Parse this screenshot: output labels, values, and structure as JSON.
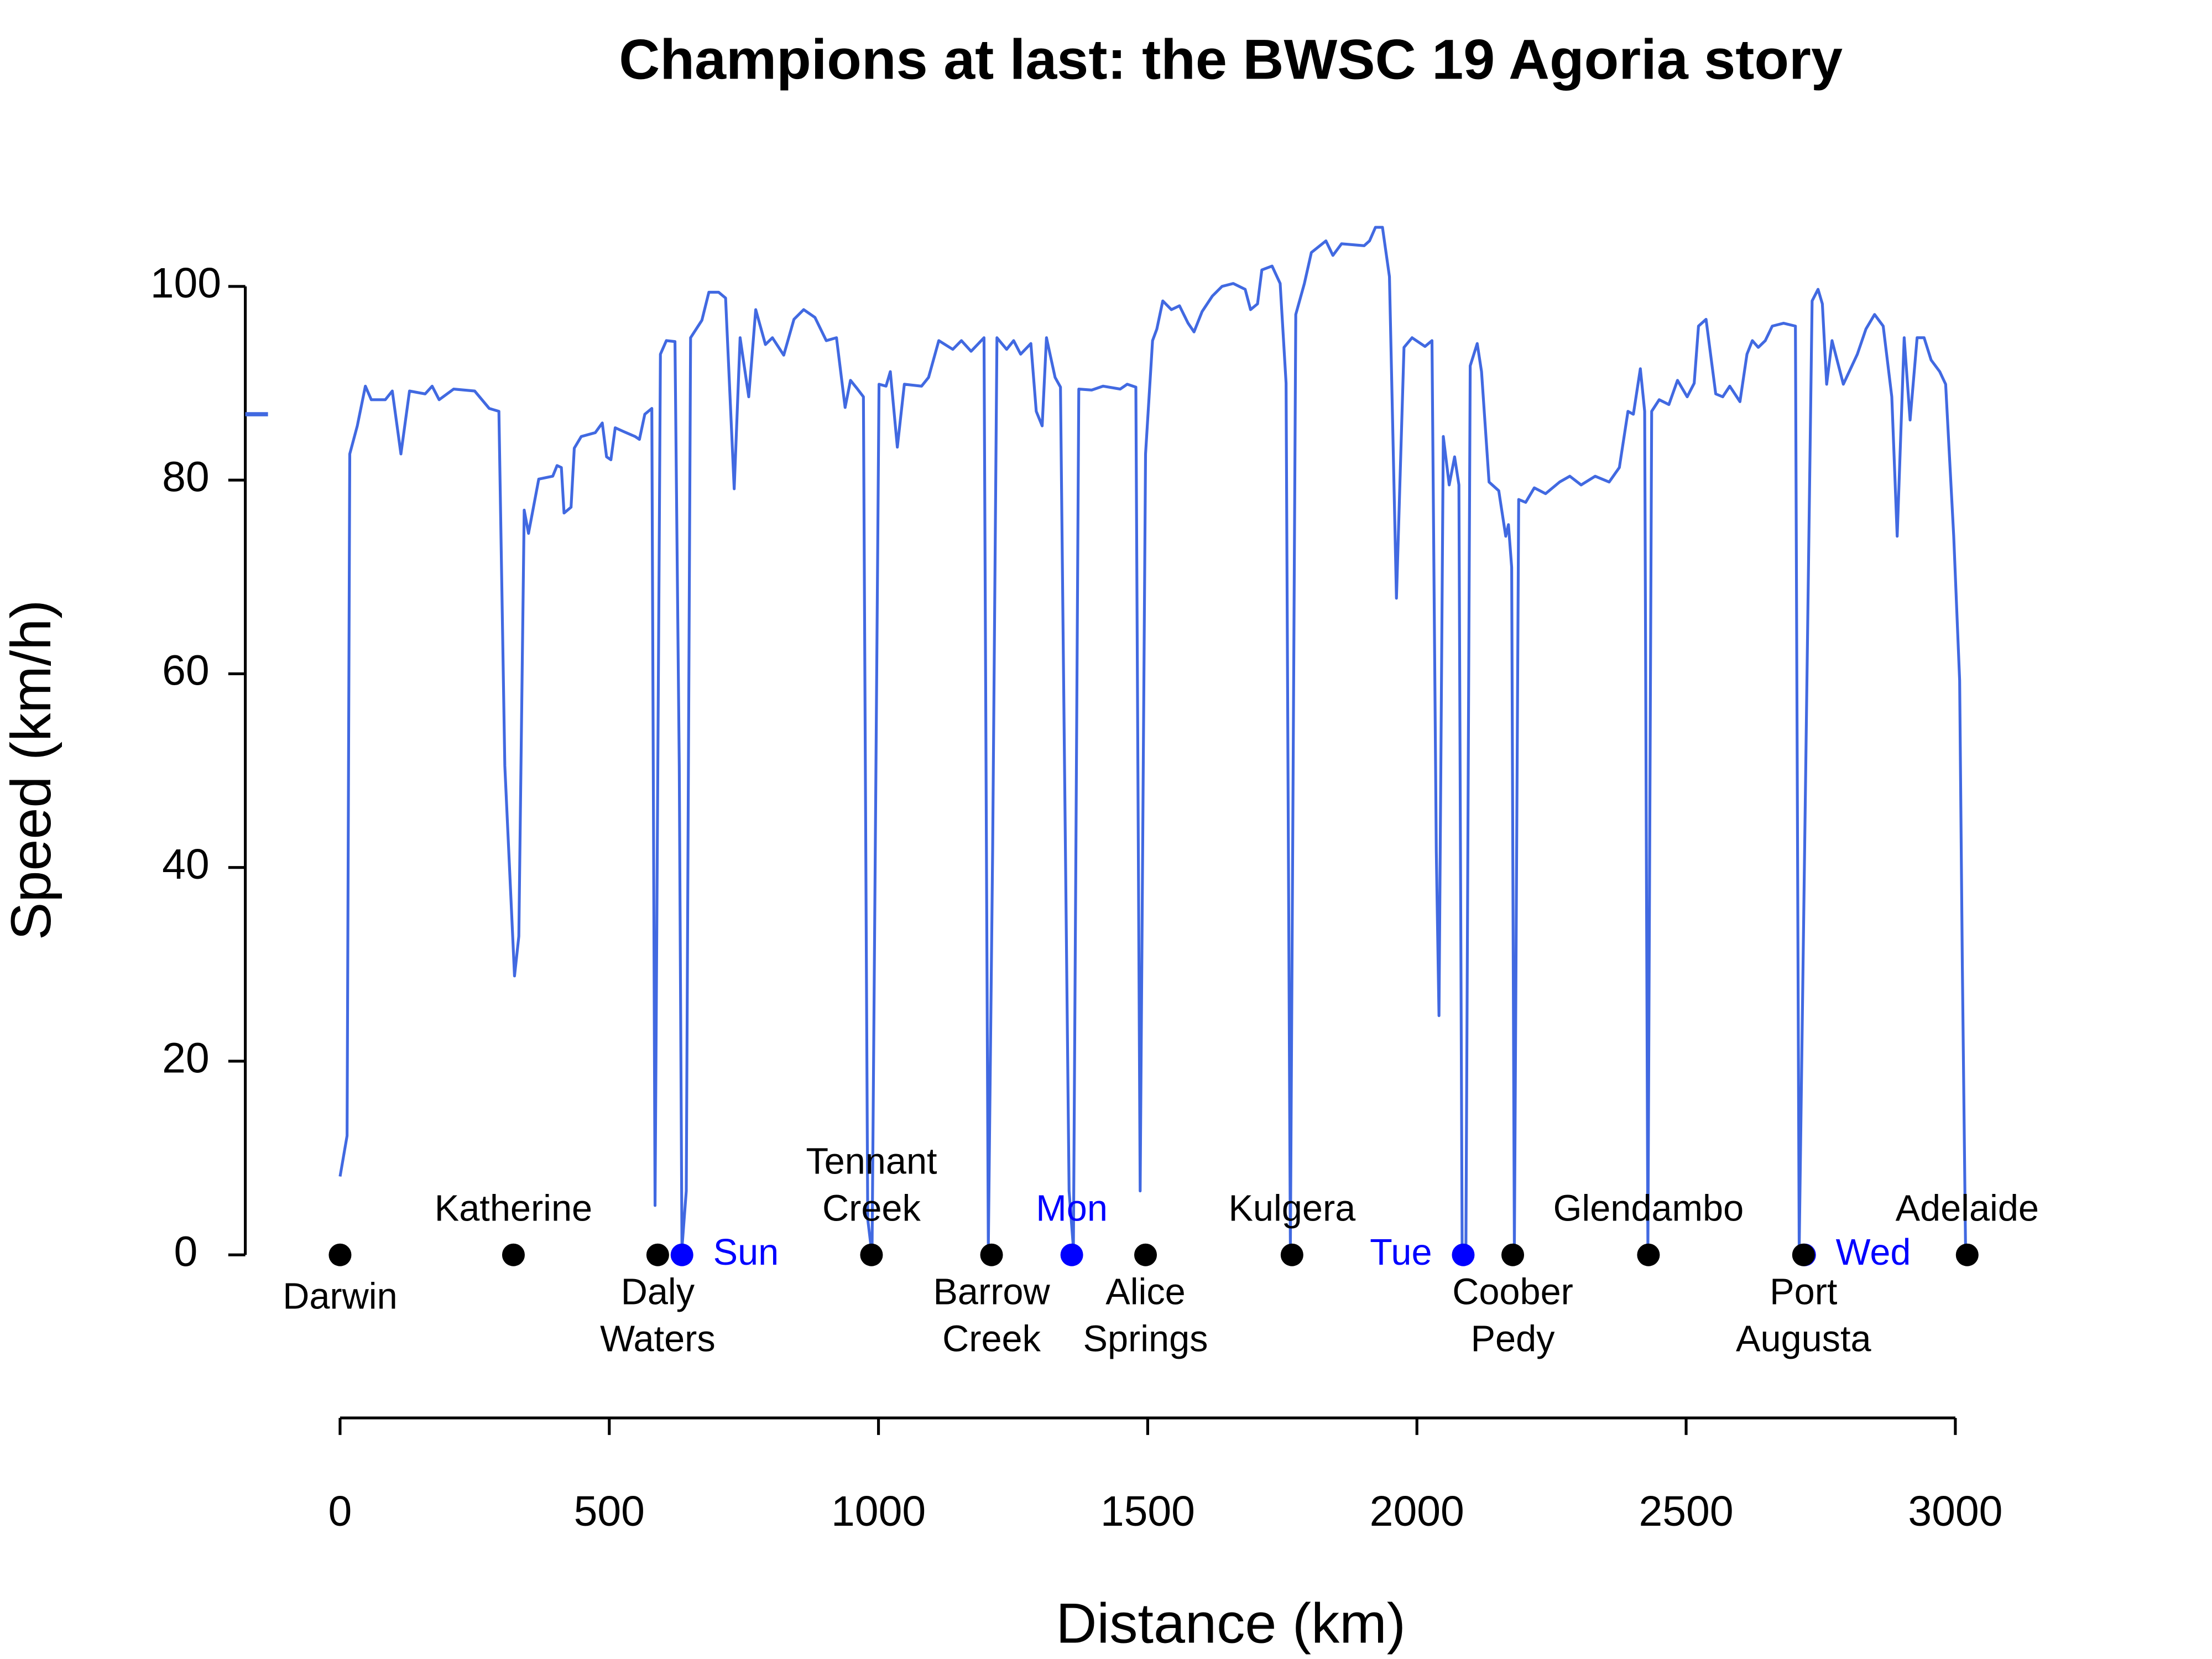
{
  "chart_data": {
    "type": "line",
    "title": "Champions at last: the BWSC 19 Agoria story",
    "xlabel": "Distance (km)",
    "ylabel": "Speed (km/h)",
    "xlim": [
      -176,
      3029
    ],
    "ylim": [
      0,
      106
    ],
    "xticks": [
      0,
      500,
      1000,
      1500,
      2000,
      2500,
      3000
    ],
    "yticks": [
      0,
      20,
      40,
      60,
      80,
      100
    ],
    "mean_speed": 86.8,
    "series": [
      {
        "color": "#4169e1",
        "x": [
          0,
          13,
          18,
          32,
          47,
          58,
          84,
          97,
          113,
          129,
          158,
          171,
          184,
          211,
          250,
          277,
          295,
          306,
          324,
          332,
          342,
          350,
          369,
          395,
          403,
          411,
          416,
          429,
          435,
          448,
          474,
          487,
          495,
          503,
          511,
          527,
          548,
          556,
          566,
          579,
          585,
          595,
          606,
          622,
          630,
          635,
          643,
          651,
          672,
          685,
          703,
          716,
          732,
          743,
          759,
          772,
          790,
          803,
          824,
          843,
          861,
          882,
          903,
          922,
          938,
          948,
          961,
          972,
          980,
          988,
          1001,
          1014,
          1022,
          1035,
          1048,
          1080,
          1093,
          1112,
          1138,
          1154,
          1172,
          1196,
          1204,
          1212,
          1220,
          1238,
          1251,
          1264,
          1283,
          1293,
          1304,
          1312,
          1328,
          1338,
          1354,
          1362,
          1372,
          1396,
          1417,
          1449,
          1462,
          1478,
          1486,
          1496,
          1509,
          1517,
          1528,
          1544,
          1559,
          1575,
          1586,
          1601,
          1620,
          1638,
          1659,
          1681,
          1691,
          1704,
          1712,
          1731,
          1746,
          1757,
          1765,
          1775,
          1791,
          1804,
          1831,
          1844,
          1860,
          1902,
          1912,
          1923,
          1936,
          1949,
          1962,
          1976,
          1991,
          2015,
          2028,
          2036,
          2041,
          2049,
          2060,
          2070,
          2078,
          2084,
          2091,
          2099,
          2112,
          2120,
          2134,
          2152,
          2165,
          2170,
          2176,
          2181,
          2189,
          2202,
          2218,
          2239,
          2265,
          2284,
          2305,
          2331,
          2357,
          2376,
          2392,
          2402,
          2415,
          2423,
          2429,
          2436,
          2450,
          2468,
          2484,
          2502,
          2515,
          2523,
          2537,
          2555,
          2568,
          2581,
          2600,
          2613,
          2623,
          2634,
          2647,
          2660,
          2681,
          2703,
          2710,
          2734,
          2745,
          2753,
          2761,
          2771,
          2792,
          2818,
          2834,
          2850,
          2866,
          2882,
          2892,
          2905,
          2916,
          2929,
          2942,
          2955,
          2971,
          2982,
          2997,
          3008,
          3013,
          3019
        ],
        "values": [
          8.1,
          12.3,
          82.7,
          85.6,
          89.7,
          88.3,
          88.3,
          89.2,
          82.7,
          89.2,
          88.9,
          89.7,
          88.3,
          89.4,
          89.2,
          87.4,
          87.1,
          50.5,
          28.8,
          32.9,
          76.9,
          74.5,
          80.1,
          80.4,
          81.5,
          81.3,
          76.6,
          77.2,
          83.3,
          84.5,
          84.9,
          85.9,
          82.4,
          82.1,
          85.4,
          85.0,
          84.5,
          84.2,
          86.8,
          87.4,
          5.1,
          93.0,
          94.4,
          94.3,
          50.5,
          0.7,
          6.6,
          94.7,
          96.5,
          99.4,
          99.4,
          98.8,
          79.1,
          94.7,
          88.6,
          97.6,
          94.0,
          94.7,
          92.9,
          96.6,
          97.6,
          96.8,
          94.4,
          94.7,
          87.5,
          90.3,
          89.4,
          88.6,
          3.7,
          0,
          89.9,
          89.7,
          91.2,
          83.4,
          89.9,
          89.7,
          90.6,
          94.4,
          93.5,
          94.4,
          93.3,
          94.7,
          0.7,
          41.7,
          94.7,
          93.5,
          94.4,
          93.0,
          94.1,
          87.1,
          85.6,
          94.7,
          90.6,
          89.6,
          6.6,
          0.7,
          89.4,
          89.3,
          89.7,
          89.4,
          89.9,
          89.6,
          6.6,
          82.7,
          94.4,
          95.6,
          98.5,
          97.6,
          98.0,
          96.2,
          95.3,
          97.4,
          99.0,
          100.0,
          100.3,
          99.7,
          97.6,
          98.2,
          101.7,
          102.1,
          100.3,
          90.0,
          0.7,
          97.1,
          100.3,
          103.5,
          104.7,
          103.2,
          104.4,
          104.2,
          104.7,
          106.1,
          106.1,
          101.0,
          67.8,
          93.7,
          94.7,
          93.8,
          94.4,
          41.7,
          24.7,
          84.5,
          79.5,
          82.4,
          79.5,
          0.7,
          0.7,
          91.8,
          94.1,
          91.2,
          79.8,
          78.9,
          74.2,
          75.4,
          71.0,
          0.7,
          78.0,
          77.7,
          79.2,
          78.6,
          79.8,
          80.4,
          79.5,
          80.4,
          79.8,
          81.3,
          87.1,
          86.8,
          91.5,
          87.1,
          0.7,
          87.1,
          88.3,
          87.8,
          90.3,
          88.6,
          90.0,
          95.9,
          96.6,
          88.9,
          88.6,
          89.7,
          88.1,
          93.0,
          94.4,
          93.7,
          94.4,
          95.9,
          96.2,
          95.9,
          0.7,
          98.5,
          99.7,
          98.2,
          89.9,
          94.4,
          89.9,
          93.0,
          95.6,
          97.1,
          95.9,
          88.6,
          74.2,
          94.7,
          86.2,
          94.7,
          94.7,
          92.4,
          91.2,
          89.9,
          74.2,
          59.3,
          30.0,
          0.7
        ]
      }
    ],
    "places": [
      {
        "label": [
          "Darwin"
        ],
        "x": 0,
        "position": "below",
        "color": "#000000"
      },
      {
        "label": [
          "Katherine"
        ],
        "x": 322,
        "position": "above",
        "color": "#000000"
      },
      {
        "label": [
          "Daly",
          "Waters"
        ],
        "x": 590,
        "position": "below",
        "color": "#000000"
      },
      {
        "label": [
          "Sun"
        ],
        "x": 635,
        "position": "right",
        "color": "#0000ff"
      },
      {
        "label": [
          "Tennant",
          "Creek"
        ],
        "x": 987,
        "position": "above",
        "color": "#000000"
      },
      {
        "label": [
          "Barrow",
          "Creek"
        ],
        "x": 1210,
        "position": "below",
        "color": "#000000"
      },
      {
        "label": [
          "Mon"
        ],
        "x": 1359,
        "position": "above",
        "color": "#0000ff"
      },
      {
        "label": [
          "Alice",
          "Springs"
        ],
        "x": 1496,
        "position": "below",
        "color": "#000000"
      },
      {
        "label": [
          "Kulgera"
        ],
        "x": 1768,
        "position": "above",
        "color": "#000000"
      },
      {
        "label": [
          "Tue"
        ],
        "x": 2086,
        "position": "left",
        "color": "#0000ff"
      },
      {
        "label": [
          "Coober",
          "Pedy"
        ],
        "x": 2178,
        "position": "below",
        "color": "#000000"
      },
      {
        "label": [
          "Glendambo"
        ],
        "x": 2430,
        "position": "above",
        "color": "#000000"
      },
      {
        "label": [
          "Wed"
        ],
        "x": 2720,
        "position": "right",
        "color": "#0000ff"
      },
      {
        "label": [
          "Port",
          "Augusta"
        ],
        "x": 2718,
        "position": "below",
        "color": "#000000"
      },
      {
        "label": [
          "Adelaide"
        ],
        "x": 3022,
        "position": "above",
        "color": "#000000"
      }
    ]
  }
}
